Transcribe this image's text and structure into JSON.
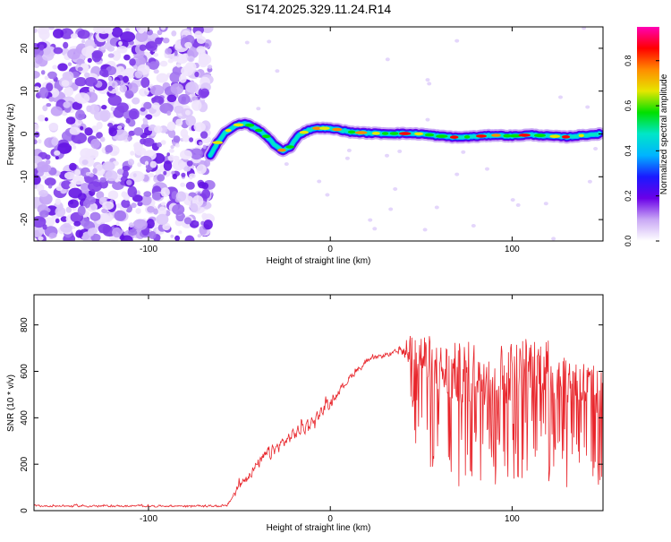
{
  "title": "S174.2025.329.11.24.R14",
  "colors": {
    "snr_line": "#e8242a",
    "colormap": [
      "#ffffff",
      "#c9a8f5",
      "#6a00e8",
      "#1a1aff",
      "#00b4ff",
      "#00e6c8",
      "#00e000",
      "#e6e600",
      "#ff8c00",
      "#ff0000",
      "#ff00b4"
    ]
  },
  "chart_data": [
    {
      "type": "heatmap",
      "name": "spectrogram",
      "xlabel": "Height of straight line (km)",
      "ylabel": "Frequency (Hz)",
      "xlim": [
        -163,
        150
      ],
      "ylim": [
        -25,
        25
      ],
      "xticks": [
        -100,
        0,
        100
      ],
      "yticks": [
        -20,
        -10,
        0,
        10,
        20
      ],
      "colorbar": {
        "label": "Normalized spectral amplitude",
        "range": [
          0,
          0.95
        ],
        "ticks": [
          0.0,
          0.2,
          0.4,
          0.6,
          0.8
        ]
      },
      "noise_region_x": [
        -163,
        -66
      ],
      "signal_trace": {
        "x": [
          -66,
          -62,
          -58,
          -54,
          -50,
          -46,
          -42,
          -38,
          -34,
          -30,
          -26,
          -22,
          -18,
          -14,
          -10,
          -5,
          0,
          5,
          10,
          20,
          30,
          40,
          50,
          60,
          70,
          80,
          90,
          100,
          110,
          120,
          130,
          140,
          148
        ],
        "y": [
          -5,
          -2,
          0.2,
          1.5,
          2.2,
          2.4,
          1.5,
          0.5,
          -1,
          -2.8,
          -4,
          -3,
          -0.5,
          0.5,
          1.2,
          1.4,
          1.2,
          1,
          0.5,
          0.2,
          0.1,
          0.1,
          0,
          -0.5,
          -0.8,
          -0.6,
          -0.3,
          -0.5,
          -0.2,
          -0.5,
          -0.7,
          -0.3,
          0
        ]
      }
    },
    {
      "type": "line",
      "name": "snr",
      "xlabel": "Height of straight line (km)",
      "ylabel": "SNR (10 * v/v)",
      "xlim": [
        -163,
        150
      ],
      "ylim": [
        0,
        930
      ],
      "xticks": [
        -100,
        0,
        100
      ],
      "yticks": [
        0,
        200,
        400,
        600,
        800
      ],
      "series": [
        {
          "name": "SNR",
          "profile_x": [
            -163,
            -57,
            -55,
            -50,
            -45,
            -40,
            -35,
            -30,
            -25,
            -20,
            -15,
            -10,
            -5,
            0,
            5,
            10,
            15,
            20,
            25,
            30,
            35,
            40,
            45,
            50,
            60,
            70,
            80,
            90,
            100,
            110,
            120,
            130,
            140,
            150
          ],
          "profile_mean": [
            20,
            20,
            50,
            110,
            160,
            200,
            240,
            270,
            300,
            330,
            360,
            390,
            430,
            470,
            520,
            570,
            610,
            640,
            660,
            670,
            680,
            690,
            640,
            620,
            560,
            550,
            560,
            540,
            560,
            580,
            570,
            520,
            500,
            460
          ],
          "profile_spread": [
            12,
            12,
            40,
            60,
            70,
            80,
            90,
            90,
            90,
            90,
            90,
            80,
            70,
            60,
            50,
            50,
            40,
            35,
            30,
            30,
            30,
            60,
            220,
            280,
            280,
            300,
            300,
            300,
            300,
            300,
            300,
            280,
            260,
            240
          ]
        }
      ]
    }
  ]
}
